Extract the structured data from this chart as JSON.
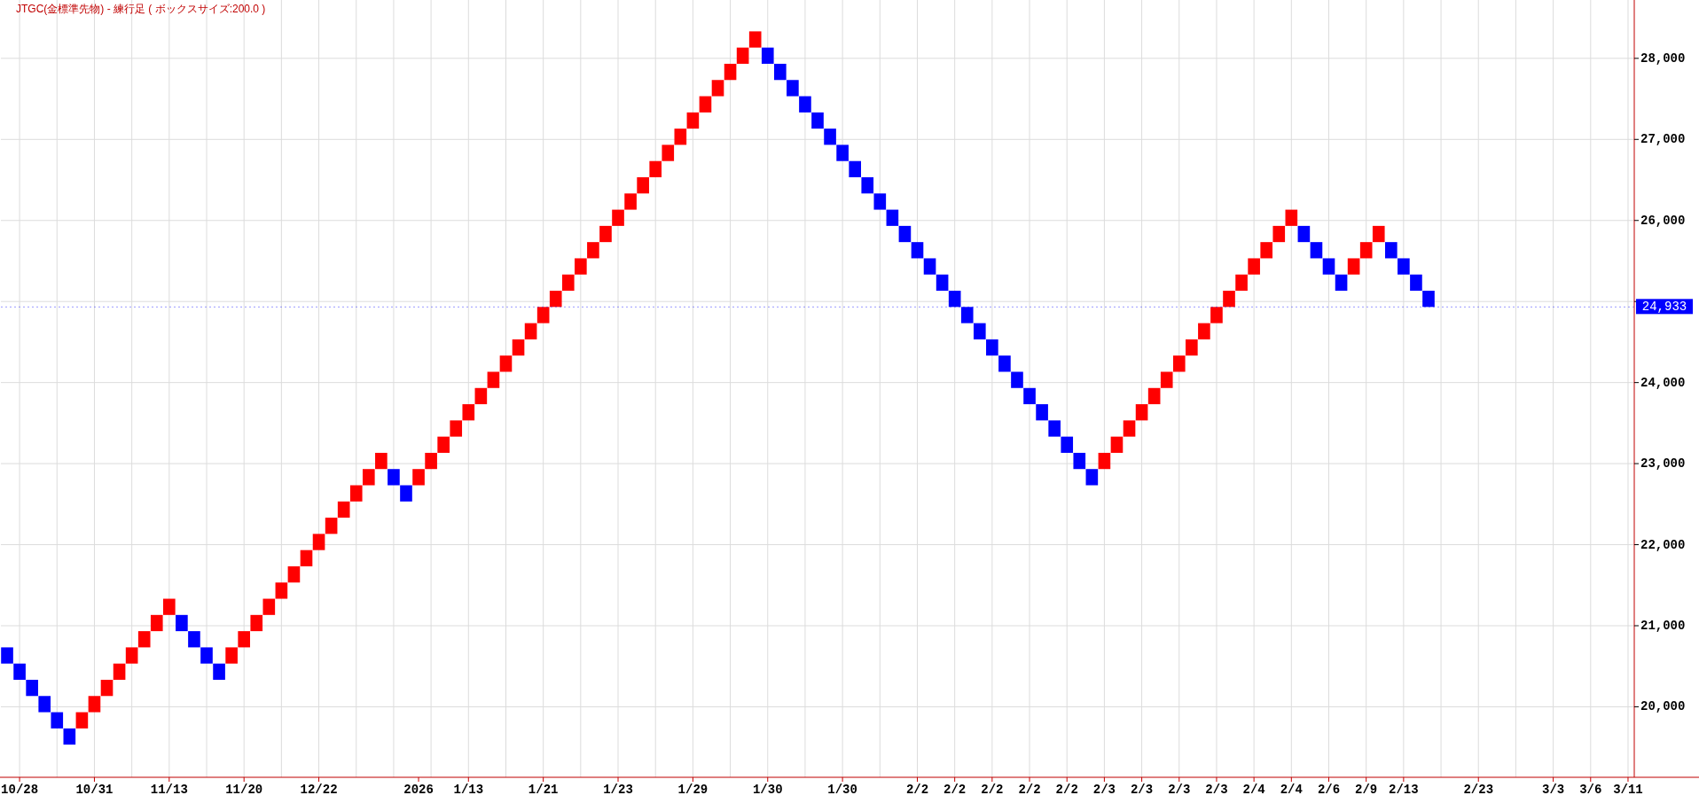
{
  "chart_data": {
    "type": "bar",
    "title": "JTGC(金標準先物) - 練行足 ( ボックスサイズ:200.0 )",
    "categories": [
      null,
      "10/28",
      null,
      null,
      null,
      null,
      null,
      "10/31",
      null,
      null,
      null,
      null,
      null,
      "11/13",
      null,
      null,
      null,
      null,
      null,
      "11/20",
      null,
      null,
      null,
      null,
      null,
      "12/22",
      null,
      null,
      null,
      null,
      null,
      null,
      null,
      "2026",
      null,
      null,
      null,
      "1/13",
      null,
      null,
      null,
      null,
      null,
      "1/21",
      null,
      null,
      null,
      null,
      null,
      "1/23",
      null,
      null,
      null,
      null,
      null,
      "1/29",
      null,
      null,
      null,
      null,
      null,
      "1/30",
      null,
      null,
      null,
      null,
      null,
      "1/30",
      null,
      null,
      null,
      null,
      null,
      "2/2",
      null,
      null,
      "2/2",
      null,
      null,
      "2/2",
      null,
      null,
      "2/2",
      null,
      null,
      "2/2",
      null,
      null,
      "2/3",
      null,
      null,
      "2/3",
      null,
      null,
      "2/3",
      null,
      null,
      "2/3",
      null,
      null,
      "2/4",
      null,
      null,
      "2/4",
      null,
      null,
      "2/6",
      null,
      null,
      "2/9",
      null,
      null,
      "2/13",
      null,
      null,
      null,
      null,
      null,
      "2/23",
      null,
      null,
      null,
      null,
      null,
      "3/3",
      null,
      null,
      "3/6",
      null,
      null,
      "3/11"
    ],
    "values": [
      200,
      200,
      200,
      200,
      200,
      200,
      200,
      200,
      200,
      200,
      200,
      200,
      200,
      200,
      200,
      200,
      200,
      200,
      200,
      200,
      200,
      200,
      200,
      200,
      200,
      200,
      200,
      200,
      200,
      200,
      200,
      200,
      200,
      200,
      200,
      200,
      200,
      200,
      200,
      200,
      200,
      200,
      200,
      200,
      200,
      200,
      200,
      200,
      200,
      200,
      200,
      200,
      200,
      200,
      200,
      200,
      200,
      200,
      200,
      200,
      200,
      200,
      200,
      200,
      200,
      200,
      200,
      200,
      200,
      200,
      200,
      200,
      200,
      200,
      200,
      200,
      200,
      200,
      200,
      200,
      200,
      200,
      200,
      200,
      200,
      200,
      200,
      200,
      200,
      200,
      200,
      200,
      200,
      200,
      200,
      200,
      200,
      200,
      200,
      200,
      200,
      200,
      200,
      200,
      200,
      200,
      200,
      200,
      200,
      200,
      200,
      200,
      200,
      200,
      200,
      null,
      null,
      null,
      null,
      null,
      null,
      null,
      null,
      null,
      null,
      null,
      null,
      null,
      null,
      null,
      null
    ],
    "base": [
      20533,
      20333,
      20133,
      19933,
      19733,
      19533,
      19733,
      19933,
      20133,
      20333,
      20533,
      20733,
      20933,
      21133,
      20933,
      20733,
      20533,
      20333,
      20533,
      20733,
      20933,
      21133,
      21333,
      21533,
      21733,
      21933,
      22133,
      22333,
      22533,
      22733,
      22933,
      22733,
      22533,
      22733,
      22933,
      23133,
      23333,
      23533,
      23733,
      23933,
      24133,
      24333,
      24533,
      24733,
      24933,
      25133,
      25333,
      25533,
      25733,
      25933,
      26133,
      26333,
      26533,
      26733,
      26933,
      27133,
      27333,
      27533,
      27733,
      27933,
      28133,
      27933,
      27733,
      27533,
      27333,
      27133,
      26933,
      26733,
      26533,
      26333,
      26133,
      25933,
      25733,
      25533,
      25333,
      25133,
      24933,
      24733,
      24533,
      24333,
      24133,
      23933,
      23733,
      23533,
      23333,
      23133,
      22933,
      22733,
      22933,
      23133,
      23333,
      23533,
      23733,
      23933,
      24133,
      24333,
      24533,
      24733,
      24933,
      25133,
      25333,
      25533,
      25733,
      25933,
      25733,
      25533,
      25333,
      25133,
      25333,
      25533,
      25733,
      25533,
      25333,
      25133,
      24933,
      null,
      null,
      null,
      null,
      null,
      null,
      null,
      null,
      null,
      null,
      null,
      null,
      null,
      null,
      null,
      null
    ],
    "colors": [
      "#0000ff",
      "#0000ff",
      "#0000ff",
      "#0000ff",
      "#0000ff",
      "#0000ff",
      "#ff0000",
      "#ff0000",
      "#ff0000",
      "#ff0000",
      "#ff0000",
      "#ff0000",
      "#ff0000",
      "#ff0000",
      "#0000ff",
      "#0000ff",
      "#0000ff",
      "#0000ff",
      "#ff0000",
      "#ff0000",
      "#ff0000",
      "#ff0000",
      "#ff0000",
      "#ff0000",
      "#ff0000",
      "#ff0000",
      "#ff0000",
      "#ff0000",
      "#ff0000",
      "#ff0000",
      "#ff0000",
      "#0000ff",
      "#0000ff",
      "#ff0000",
      "#ff0000",
      "#ff0000",
      "#ff0000",
      "#ff0000",
      "#ff0000",
      "#ff0000",
      "#ff0000",
      "#ff0000",
      "#ff0000",
      "#ff0000",
      "#ff0000",
      "#ff0000",
      "#ff0000",
      "#ff0000",
      "#ff0000",
      "#ff0000",
      "#ff0000",
      "#ff0000",
      "#ff0000",
      "#ff0000",
      "#ff0000",
      "#ff0000",
      "#ff0000",
      "#ff0000",
      "#ff0000",
      "#ff0000",
      "#ff0000",
      "#0000ff",
      "#0000ff",
      "#0000ff",
      "#0000ff",
      "#0000ff",
      "#0000ff",
      "#0000ff",
      "#0000ff",
      "#0000ff",
      "#0000ff",
      "#0000ff",
      "#0000ff",
      "#0000ff",
      "#0000ff",
      "#0000ff",
      "#0000ff",
      "#0000ff",
      "#0000ff",
      "#0000ff",
      "#0000ff",
      "#0000ff",
      "#0000ff",
      "#0000ff",
      "#0000ff",
      "#0000ff",
      "#0000ff",
      "#0000ff",
      "#ff0000",
      "#ff0000",
      "#ff0000",
      "#ff0000",
      "#ff0000",
      "#ff0000",
      "#ff0000",
      "#ff0000",
      "#ff0000",
      "#ff0000",
      "#ff0000",
      "#ff0000",
      "#ff0000",
      "#ff0000",
      "#ff0000",
      "#ff0000",
      "#0000ff",
      "#0000ff",
      "#0000ff",
      "#0000ff",
      "#ff0000",
      "#ff0000",
      "#ff0000",
      "#0000ff",
      "#0000ff",
      "#0000ff",
      "#0000ff",
      null,
      null,
      null,
      null,
      null,
      null,
      null,
      null,
      null,
      null,
      null,
      null,
      null,
      null,
      null,
      null
    ],
    "ylim": [
      19130,
      28720
    ],
    "yticks": [
      {
        "value": 20000,
        "label": "20,000"
      },
      {
        "value": 21000,
        "label": "21,000"
      },
      {
        "value": 22000,
        "label": "22,000"
      },
      {
        "value": 23000,
        "label": "23,000"
      },
      {
        "value": 24000,
        "label": "24,000"
      },
      {
        "value": 25000,
        "label": null
      },
      {
        "value": 26000,
        "label": "26,000"
      },
      {
        "value": 27000,
        "label": "27,000"
      },
      {
        "value": 28000,
        "label": "28,000"
      }
    ],
    "ref_lines": [
      {
        "axis": "y",
        "value": 24933,
        "label": "24,933",
        "color": "#0000ff"
      }
    ],
    "grid": true
  }
}
